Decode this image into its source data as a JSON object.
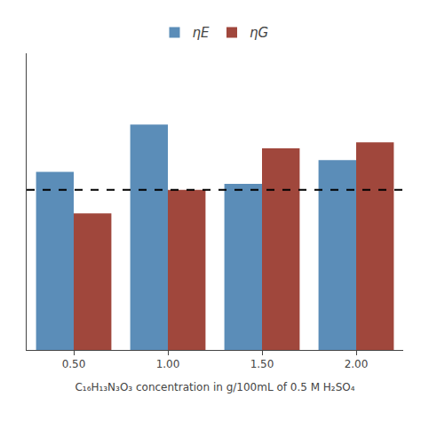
{
  "chart_data": {
    "type": "bar",
    "categories": [
      "0.50",
      "1.00",
      "1.50",
      "2.00"
    ],
    "series": [
      {
        "name": "ηE",
        "color": "#5B8DB8",
        "values": [
          97.5,
          98.3,
          97.3,
          97.7
        ]
      },
      {
        "name": "ηG",
        "color": "#A0473C",
        "values": [
          96.8,
          97.2,
          97.9,
          98.0
        ]
      }
    ],
    "hline": {
      "value": 97.2,
      "color": "#000000",
      "line_style": "dashed"
    },
    "xlabel": "C₁₆H₁₃N₃O₃ concentration in g/100mL of 0.5 M H₂SO₄",
    "ylim": [
      94.5,
      99.5
    ],
    "yticks": [],
    "tick_labels": "x",
    "grid": false,
    "legend": "top"
  }
}
